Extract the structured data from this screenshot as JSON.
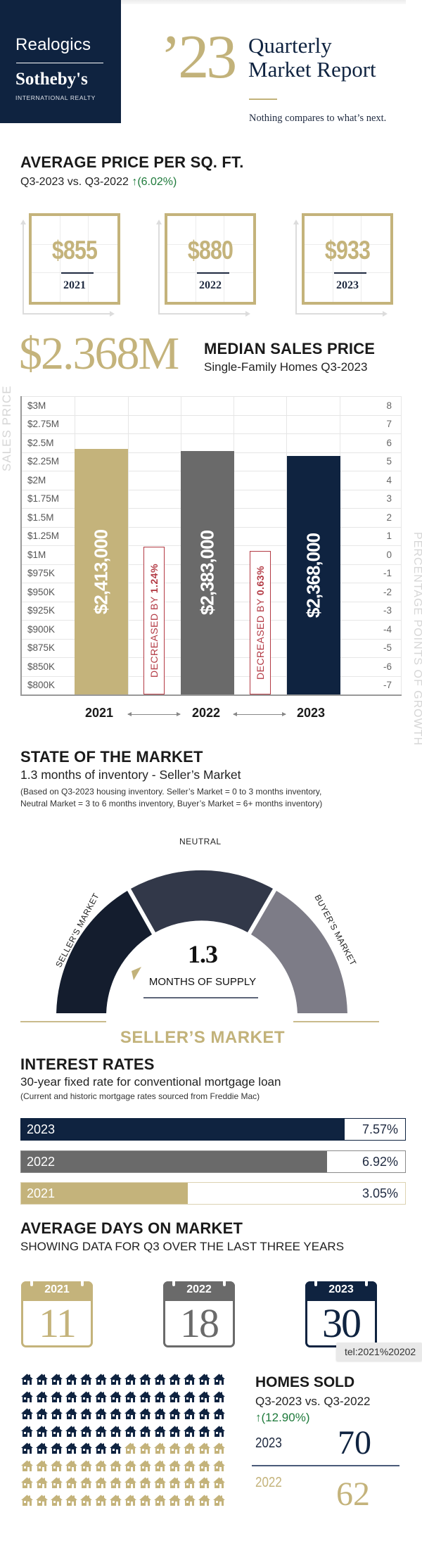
{
  "header": {
    "brand_line1": "Realogics",
    "brand_line2": "Sotheby's",
    "brand_line3": "INTERNATIONAL REALTY",
    "year": "’23",
    "title_line1": "Quarterly",
    "title_line2": "Market Report",
    "tagline": "Nothing compares to what’s next."
  },
  "colors": {
    "navy": "#0f2340",
    "gold": "#c4b37b",
    "gray": "#6a6a6a",
    "green": "#1e7a3b",
    "red": "#b33a44"
  },
  "price_per_sqft": {
    "title": "AVERAGE PRICE  PER SQ. FT.",
    "comparison": "Q3-2023 vs. Q3-2022",
    "change": "↑(6.02%)",
    "items": [
      {
        "value": "$855",
        "year": "2021"
      },
      {
        "value": "$880",
        "year": "2022"
      },
      {
        "value": "$933",
        "year": "2023"
      }
    ]
  },
  "median": {
    "big_value": "$2.368M",
    "title": "MEDIAN SALES PRICE",
    "subtitle": "Single-Family Homes Q3-2023",
    "left_axis_title": "SALES PRICE",
    "right_axis_title": "PERCENTAGE POINTS OF GROWTH",
    "decrease_1_prefix": "DECREASED BY ",
    "decrease_1_value": "1.24%",
    "decrease_2_prefix": "DECREASED BY ",
    "decrease_2_value": "0.63%"
  },
  "chart_data": {
    "type": "bar",
    "title": "MEDIAN SALES PRICE",
    "subtitle": "Single-Family Homes Q3-2023",
    "categories": [
      "2021",
      "2022",
      "2023"
    ],
    "values": [
      2413000,
      2383000,
      2368000
    ],
    "value_labels": [
      "$2,413,000",
      "$2,383,000",
      "$2,368,000"
    ],
    "bar_colors": [
      "#c4b37b",
      "#6a6a6a",
      "#0f2340"
    ],
    "ylabel": "SALES PRICE",
    "y2label": "PERCENTAGE POINTS OF GROWTH",
    "yticks": [
      "$3M",
      "$2.75M",
      "$2.5M",
      "$2.25M",
      "$2M",
      "$1.75M",
      "$1.5M",
      "$1.25M",
      "$1M",
      "$975K",
      "$950K",
      "$925K",
      "$900K",
      "$875K",
      "$850K",
      "$800K"
    ],
    "y2ticks": [
      "8",
      "7",
      "6",
      "5",
      "4",
      "3",
      "2",
      "1",
      "0",
      "-1",
      "-2",
      "-3",
      "-4",
      "-5",
      "-6",
      "-7"
    ],
    "growth_annotations": [
      {
        "between": [
          "2021",
          "2022"
        ],
        "text": "DECREASED BY 1.24%",
        "value": -1.24
      },
      {
        "between": [
          "2022",
          "2023"
        ],
        "text": "DECREASED BY 0.63%",
        "value": -0.63
      }
    ],
    "grid": true
  },
  "market": {
    "title": "STATE OF THE MARKET",
    "subtitle": "1.3 months of inventory - Seller’s Market",
    "note_line1": "(Based on Q3-2023 housing inventory. Seller’s Market = 0 to 3 months inventory,",
    "note_line2": "Neutral Market = 3 to 6 months inventory, Buyer’s Market = 6+ months inventory)",
    "gauge_left": "SELLER’S MARKET",
    "gauge_mid": "NEUTRAL",
    "gauge_right": "BUYER’S MARKET",
    "value": "1.3",
    "value_label": "MONTHS OF SUPPLY",
    "verdict": "SELLER’S MARKET"
  },
  "interest": {
    "title": "INTEREST RATES",
    "subtitle": "30-year fixed rate for conventional mortgage loan",
    "note": "(Current and historic mortgage rates sourced from Freddie Mac)",
    "rows": [
      {
        "year": "2023",
        "rate": "7.57%"
      },
      {
        "year": "2022",
        "rate": "6.92%"
      },
      {
        "year": "2021",
        "rate": "3.05%"
      }
    ]
  },
  "days": {
    "title": "AVERAGE DAYS ON MARKET",
    "subtitle": "SHOWING DATA FOR Q3 OVER THE LAST THREE YEARS",
    "items": [
      {
        "year": "2021",
        "days": "11"
      },
      {
        "year": "2022",
        "days": "18"
      },
      {
        "year": "2023",
        "days": "30"
      }
    ],
    "tooltip": "tel:2021%20202"
  },
  "homes_sold": {
    "title": "HOMES SOLD",
    "comparison": "Q3-2023 vs. Q3-2022",
    "change": "↑(12.90%)",
    "rows": [
      {
        "year": "2023",
        "count": "70"
      },
      {
        "year": "2022",
        "count": "62"
      }
    ],
    "icon_grid": {
      "columns": 14,
      "rows": 8,
      "navy_count": 63
    }
  }
}
